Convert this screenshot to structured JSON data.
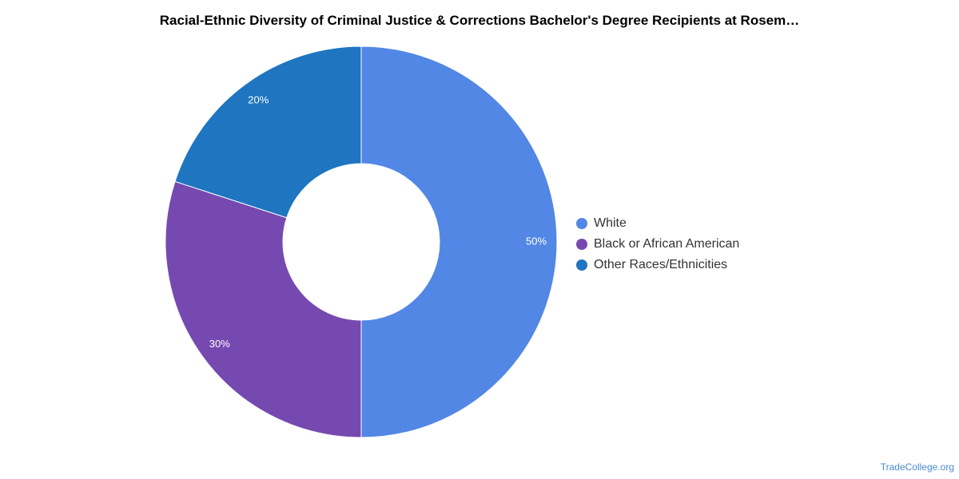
{
  "chart_data": {
    "type": "pie",
    "title": "Racial-Ethnic Diversity of Criminal Justice & Corrections Bachelor's Degree Recipients at Rosem…",
    "categories": [
      "White",
      "Black or African American",
      "Other Races/Ethnicities"
    ],
    "values": [
      50,
      30,
      20
    ],
    "data_labels": [
      "50%",
      "30%",
      "20%"
    ],
    "colors": [
      "#5387e5",
      "#7649b0",
      "#1f75c0"
    ],
    "donut": true,
    "legend_position": "right"
  },
  "source": "TradeCollege.org"
}
